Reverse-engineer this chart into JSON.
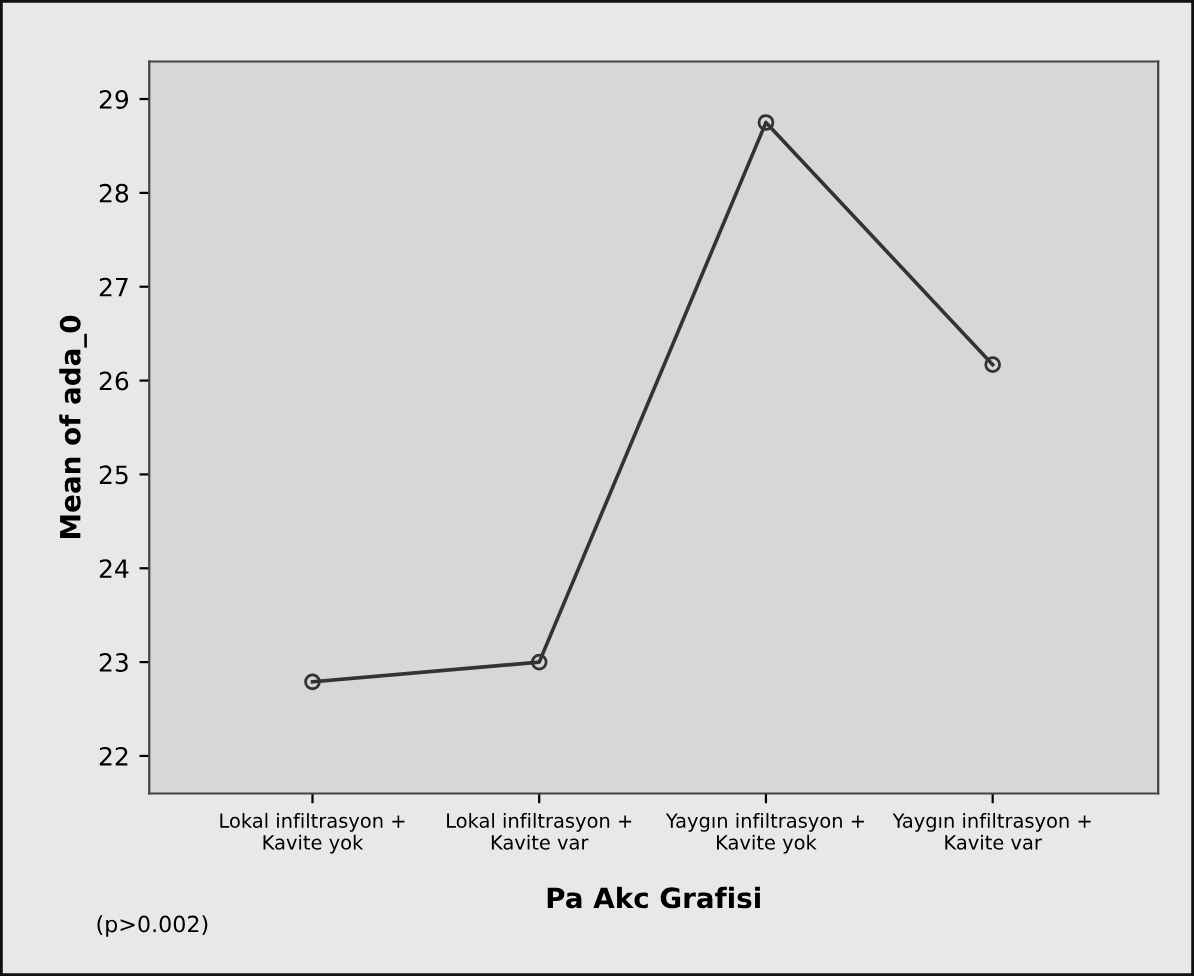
{
  "chart_data": {
    "type": "line",
    "xlabel": "Pa Akc Grafisi",
    "ylabel": "Mean of ada_0",
    "categories": [
      "Lokal infiltrasyon +\nKavite yok",
      "Lokal infiltrasyon +\nKavite var",
      "Yaygın infiltrasyon +\nKavite yok",
      "Yaygın infiltrasyon +\nKavite var"
    ],
    "series": [
      {
        "color": "#333333",
        "values": [
          22.79,
          23.0,
          28.75,
          26.17
        ]
      }
    ],
    "ylim": [
      21.6,
      29.4
    ],
    "yticks": [
      22,
      23,
      24,
      25,
      26,
      27,
      28,
      29
    ],
    "marker": "circle",
    "line_style": "solid",
    "grid": false,
    "legend": false,
    "annotations": [
      "(p>0.002)"
    ]
  }
}
